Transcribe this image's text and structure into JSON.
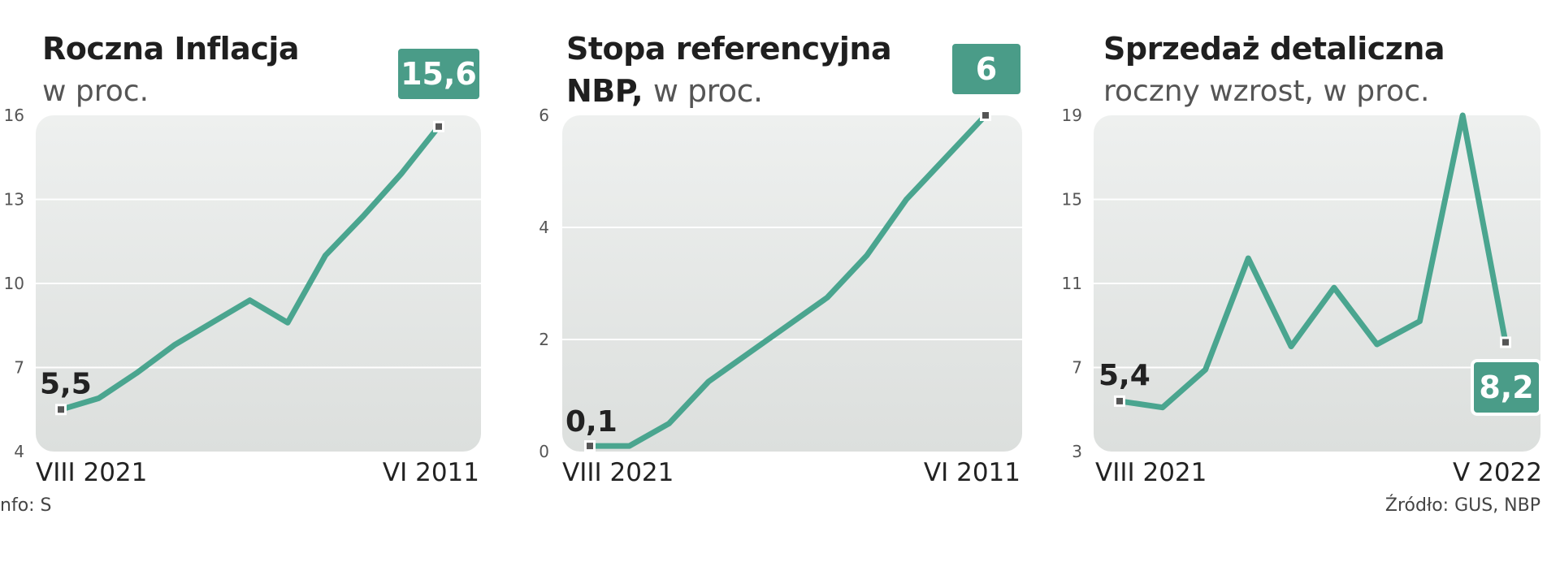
{
  "colors": {
    "line": "#4aa58f",
    "badge": "#4a9c88",
    "panel_top": "#eef0ef",
    "panel_bottom": "#dcdfdd",
    "grid": "#ffffff",
    "marker": "#555555"
  },
  "footer": {
    "left": "nfo: S",
    "right": "Źródło: GUS, NBP"
  },
  "chart_data": [
    {
      "type": "line",
      "title": "Roczna Inflacja",
      "subtitle": "w proc.",
      "yticks": [
        4,
        7,
        10,
        13,
        16
      ],
      "ylim": [
        4,
        16
      ],
      "x_start_label": "VIII 2021",
      "x_end_label": "VI 2011",
      "values": [
        5.5,
        5.9,
        6.8,
        7.8,
        8.6,
        9.4,
        8.6,
        11.0,
        12.4,
        13.9,
        15.6
      ],
      "start_annotation": "5,5",
      "end_badge": "15,6",
      "grid": true
    },
    {
      "type": "line",
      "title": "Stopa referencyjna",
      "title_line2": "NBP,",
      "subtitle": "w proc.",
      "yticks": [
        0,
        2,
        4,
        6
      ],
      "ylim": [
        0,
        6
      ],
      "x_start_label": "VIII 2021",
      "x_end_label": "VI 2011",
      "values": [
        0.1,
        0.1,
        0.5,
        1.25,
        1.75,
        2.25,
        2.75,
        3.5,
        4.5,
        5.25,
        6.0
      ],
      "start_annotation": "0,1",
      "end_badge": "6",
      "grid": true
    },
    {
      "type": "line",
      "title": "Sprzedaż detaliczna",
      "subtitle": "roczny wzrost, w proc.",
      "yticks": [
        3,
        7,
        11,
        15,
        19
      ],
      "ylim": [
        3,
        19
      ],
      "x_start_label": "VIII 2021",
      "x_end_label": "V 2022",
      "values": [
        5.4,
        5.1,
        6.9,
        12.2,
        8.0,
        10.8,
        8.1,
        9.2,
        19.0,
        8.2
      ],
      "start_annotation": "5,4",
      "end_badge": "8,2",
      "grid": true
    }
  ]
}
